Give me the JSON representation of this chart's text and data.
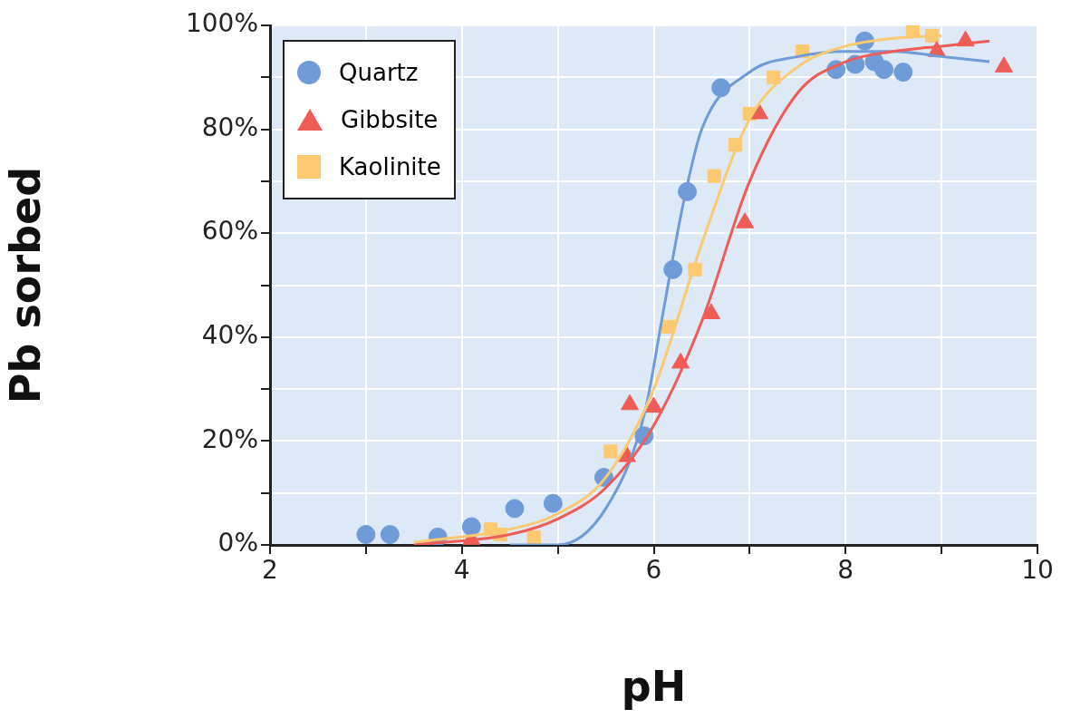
{
  "chart_data": {
    "type": "scatter",
    "xlabel": "pH",
    "ylabel": "Pb sorbed",
    "xlim": [
      2,
      10
    ],
    "xticks": [
      2,
      {
        "value": 3,
        "label": null
      },
      4,
      {
        "value": 5,
        "label": null
      },
      6,
      {
        "value": 7,
        "label": null
      },
      8,
      {
        "value": 9,
        "label": null
      },
      10
    ],
    "ylim": [
      0,
      100
    ],
    "yticks": [
      {
        "value": 0,
        "label": "0%"
      },
      {
        "value": 10,
        "label": null
      },
      {
        "value": 20,
        "label": "20%"
      },
      {
        "value": 30,
        "label": null
      },
      {
        "value": 40,
        "label": "40%"
      },
      {
        "value": 50,
        "label": null
      },
      {
        "value": 60,
        "label": "60%"
      },
      {
        "value": 70,
        "label": null
      },
      {
        "value": 80,
        "label": "80%"
      },
      {
        "value": 90,
        "label": null
      },
      {
        "value": 100,
        "label": "100%"
      }
    ],
    "grid": true,
    "legend": "top left",
    "series": [
      {
        "name": "Quartz",
        "color": "#6f9bd8",
        "marker": "circle",
        "x": [
          3.0,
          3.25,
          3.75,
          4.1,
          4.55,
          4.95,
          5.48,
          5.9,
          6.2,
          6.35,
          6.7,
          7.9,
          8.1,
          8.2,
          8.3,
          8.4,
          8.6
        ],
        "values": [
          2,
          2,
          1.5,
          3.5,
          7,
          8,
          13,
          21,
          53,
          68,
          88,
          91.5,
          92.5,
          97,
          93,
          91.5,
          91
        ]
      },
      {
        "name": "Gibbsite",
        "color": "#ef5b55",
        "marker": "triangle",
        "x": [
          4.1,
          5.72,
          5.75,
          6.0,
          6.28,
          6.6,
          6.95,
          7.1,
          8.95,
          9.25,
          9.65
        ],
        "values": [
          1,
          17,
          27,
          26.5,
          35,
          44.5,
          62,
          83,
          95,
          97,
          92
        ]
      },
      {
        "name": "Kaolinite",
        "color": "#fcc970",
        "marker": "square",
        "x": [
          4.3,
          4.4,
          4.75,
          5.55,
          6.15,
          6.43,
          6.63,
          6.85,
          7.0,
          7.25,
          7.55,
          8.7,
          8.9
        ],
        "values": [
          3,
          2,
          1.5,
          18,
          42,
          53,
          71,
          77,
          83,
          90,
          95,
          99,
          98
        ]
      },
      {
        "type": "line",
        "color": "#fcc970",
        "x": [
          3.5,
          4.5,
          5.0,
          5.5,
          6.0,
          6.5,
          7.0,
          7.5,
          8.0,
          8.5,
          9.0
        ],
        "values": [
          0.5,
          3,
          6,
          13,
          30,
          58,
          82,
          92,
          96,
          97.5,
          98
        ]
      },
      {
        "type": "line",
        "color": "#ef5b55",
        "x": [
          3.5,
          4.5,
          5.0,
          5.5,
          6.0,
          6.5,
          7.0,
          7.5,
          8.0,
          8.5,
          9.0,
          9.5
        ],
        "values": [
          0,
          2,
          5,
          11,
          23,
          43,
          70,
          87,
          93,
          95,
          96,
          97
        ]
      },
      {
        "type": "line",
        "color": "#6f9bd8",
        "x": [
          4.5,
          5.0,
          5.5,
          5.9,
          6.1,
          6.3,
          6.5,
          7.0,
          7.5,
          8.0,
          8.5,
          9.0,
          9.5
        ],
        "values": [
          0,
          0,
          7,
          25,
          45,
          65,
          80,
          91,
          94,
          95,
          95,
          94,
          93
        ]
      }
    ]
  }
}
